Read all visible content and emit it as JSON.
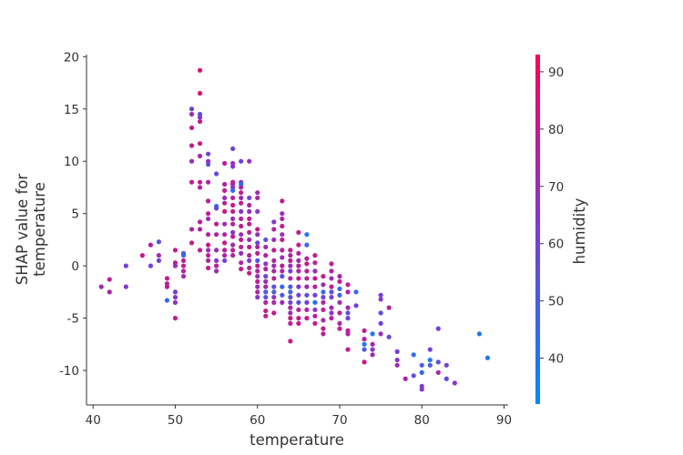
{
  "chart_data": {
    "type": "scatter",
    "title": "",
    "xlabel": "temperature",
    "ylabel": [
      "SHAP value for",
      "temperature"
    ],
    "xlim": [
      39.2,
      90.5
    ],
    "ylim": [
      -13.3,
      20.2
    ],
    "xticks": [
      40,
      50,
      60,
      70,
      80,
      90
    ],
    "yticks": [
      20,
      15,
      10,
      5,
      0,
      -5,
      -10
    ],
    "xtick_labels": [
      "40",
      "50",
      "60",
      "70",
      "80",
      "90"
    ],
    "ytick_labels": [
      "20",
      "15",
      "10",
      "5",
      "0",
      "-5",
      "-10"
    ],
    "grid": false,
    "colorbar": {
      "label": "humidity",
      "range": [
        32,
        93
      ],
      "ticks": [
        40,
        50,
        60,
        70,
        80,
        90
      ],
      "tick_labels": [
        "40",
        "50",
        "60",
        "70",
        "80",
        "90"
      ],
      "colors": [
        "#008afb",
        "#7a3cd7",
        "#ff0052"
      ]
    },
    "points": [
      [
        41,
        -2,
        70
      ],
      [
        42,
        -1.3,
        78
      ],
      [
        42,
        -2.5,
        75
      ],
      [
        44,
        0,
        60
      ],
      [
        44,
        -2,
        65
      ],
      [
        46,
        1,
        80
      ],
      [
        47,
        2,
        75
      ],
      [
        47,
        0,
        60
      ],
      [
        48,
        2.3,
        55
      ],
      [
        48,
        1,
        70
      ],
      [
        48,
        0.5,
        60
      ],
      [
        49,
        -1.2,
        80
      ],
      [
        49,
        -1.7,
        75
      ],
      [
        49,
        -2,
        78
      ],
      [
        49,
        -3.3,
        45
      ],
      [
        50,
        1.5,
        80
      ],
      [
        50,
        0.3,
        78
      ],
      [
        50,
        0,
        70
      ],
      [
        50,
        -2.5,
        60
      ],
      [
        50,
        -3,
        65
      ],
      [
        50,
        -3.5,
        70
      ],
      [
        50,
        -5,
        80
      ],
      [
        51,
        1.2,
        55
      ],
      [
        51,
        1,
        45
      ],
      [
        51,
        0.5,
        80
      ],
      [
        51,
        0,
        78
      ],
      [
        51,
        -0.5,
        75
      ],
      [
        51,
        -1,
        70
      ],
      [
        52,
        15,
        60
      ],
      [
        52,
        14.5,
        70
      ],
      [
        52,
        13.2,
        80
      ],
      [
        52,
        11.5,
        78
      ],
      [
        52,
        10,
        70
      ],
      [
        52,
        8,
        80
      ],
      [
        52,
        3.5,
        75
      ],
      [
        52,
        2.2,
        80
      ],
      [
        53,
        18.7,
        85
      ],
      [
        53,
        16.5,
        85
      ],
      [
        53,
        14.5,
        55
      ],
      [
        53,
        14.2,
        65
      ],
      [
        53,
        13.8,
        80
      ],
      [
        53,
        11.7,
        80
      ],
      [
        53,
        10.5,
        70
      ],
      [
        53,
        8,
        80
      ],
      [
        53,
        7.5,
        75
      ],
      [
        53,
        4.2,
        78
      ],
      [
        53,
        3.5,
        75
      ],
      [
        53,
        1.5,
        80
      ],
      [
        54,
        10.7,
        60
      ],
      [
        54,
        10,
        70
      ],
      [
        54,
        9.7,
        55
      ],
      [
        54,
        8,
        75
      ],
      [
        54,
        6.2,
        78
      ],
      [
        54,
        5,
        78
      ],
      [
        54,
        4.5,
        70
      ],
      [
        54,
        3,
        75
      ],
      [
        54,
        2,
        80
      ],
      [
        54,
        1.5,
        70
      ],
      [
        54,
        1,
        78
      ],
      [
        54,
        0.5,
        75
      ],
      [
        54,
        -0.2,
        80
      ],
      [
        55,
        8.8,
        55
      ],
      [
        55,
        5.7,
        45
      ],
      [
        55,
        5.5,
        60
      ],
      [
        55,
        4,
        80
      ],
      [
        55,
        3,
        75
      ],
      [
        55,
        1.5,
        70
      ],
      [
        55,
        0.5,
        65
      ],
      [
        55,
        0,
        78
      ],
      [
        55,
        -0.5,
        70
      ],
      [
        56,
        9.8,
        78
      ],
      [
        56,
        7.8,
        75
      ],
      [
        56,
        7.2,
        78
      ],
      [
        56,
        6.5,
        70
      ],
      [
        56,
        6,
        75
      ],
      [
        56,
        5.2,
        80
      ],
      [
        56,
        4,
        70
      ],
      [
        56,
        3,
        75
      ],
      [
        56,
        2.2,
        80
      ],
      [
        56,
        1.5,
        78
      ],
      [
        56,
        1,
        75
      ],
      [
        56,
        0.5,
        60
      ],
      [
        57,
        11.2,
        60
      ],
      [
        57,
        9.8,
        70
      ],
      [
        57,
        9.5,
        65
      ],
      [
        57,
        8,
        78
      ],
      [
        57,
        7.8,
        75
      ],
      [
        57,
        7.5,
        70
      ],
      [
        57,
        7.2,
        45
      ],
      [
        57,
        6.5,
        75
      ],
      [
        57,
        5.8,
        80
      ],
      [
        57,
        5.2,
        78
      ],
      [
        57,
        4.5,
        70
      ],
      [
        57,
        4,
        75
      ],
      [
        57,
        3.2,
        65
      ],
      [
        57,
        2.8,
        80
      ],
      [
        57,
        2,
        70
      ],
      [
        57,
        1.5,
        78
      ],
      [
        57,
        1,
        75
      ],
      [
        58,
        10,
        60
      ],
      [
        58,
        8,
        70
      ],
      [
        58,
        7.8,
        40
      ],
      [
        58,
        7.5,
        75
      ],
      [
        58,
        7,
        78
      ],
      [
        58,
        6.5,
        70
      ],
      [
        58,
        6,
        80
      ],
      [
        58,
        5.2,
        65
      ],
      [
        58,
        4.5,
        75
      ],
      [
        58,
        3.8,
        78
      ],
      [
        58,
        3,
        70
      ],
      [
        58,
        2.5,
        80
      ],
      [
        58,
        1.8,
        75
      ],
      [
        58,
        1.2,
        70
      ],
      [
        58,
        0.3,
        75
      ],
      [
        58,
        -0.3,
        78
      ],
      [
        59,
        10,
        70
      ],
      [
        59,
        6.5,
        60
      ],
      [
        59,
        5.8,
        75
      ],
      [
        59,
        5.2,
        70
      ],
      [
        59,
        4.5,
        80
      ],
      [
        59,
        4,
        78
      ],
      [
        59,
        3.2,
        75
      ],
      [
        59,
        2.5,
        70
      ],
      [
        59,
        1.8,
        80
      ],
      [
        59,
        1,
        75
      ],
      [
        59,
        0.5,
        65
      ],
      [
        59,
        -0.2,
        78
      ],
      [
        59,
        -0.7,
        80
      ],
      [
        60,
        7,
        70
      ],
      [
        60,
        6.5,
        75
      ],
      [
        60,
        5.2,
        65
      ],
      [
        60,
        3.5,
        80
      ],
      [
        60,
        3,
        70
      ],
      [
        60,
        2.2,
        60
      ],
      [
        60,
        1.8,
        75
      ],
      [
        60,
        1.2,
        78
      ],
      [
        60,
        0.5,
        50
      ],
      [
        60,
        0,
        80
      ],
      [
        60,
        -0.5,
        75
      ],
      [
        60,
        -1,
        70
      ],
      [
        60,
        -1.5,
        78
      ],
      [
        60,
        -2,
        70
      ],
      [
        60,
        -2.5,
        75
      ],
      [
        60,
        -3,
        65
      ],
      [
        61,
        2.5,
        55
      ],
      [
        61,
        1.8,
        70
      ],
      [
        61,
        1,
        75
      ],
      [
        61,
        0.2,
        65
      ],
      [
        61,
        -0.3,
        75
      ],
      [
        61,
        -1,
        60
      ],
      [
        61,
        -1.5,
        70
      ],
      [
        61,
        -2,
        75
      ],
      [
        61,
        -2.5,
        50
      ],
      [
        61,
        -3,
        55
      ],
      [
        61,
        -3.5,
        75
      ],
      [
        61,
        -4.3,
        80
      ],
      [
        61,
        -4.8,
        78
      ],
      [
        62,
        4.2,
        65
      ],
      [
        62,
        3.5,
        75
      ],
      [
        62,
        2.5,
        70
      ],
      [
        62,
        1.5,
        78
      ],
      [
        62,
        0.5,
        75
      ],
      [
        62,
        0,
        70
      ],
      [
        62,
        -0.5,
        75
      ],
      [
        62,
        -1.2,
        78
      ],
      [
        62,
        -2,
        55
      ],
      [
        62,
        -2.5,
        50
      ],
      [
        62,
        -3,
        65
      ],
      [
        62,
        -3.5,
        75
      ],
      [
        62,
        -4.5,
        80
      ],
      [
        63,
        6.2,
        78
      ],
      [
        63,
        5,
        70
      ],
      [
        63,
        4.5,
        75
      ],
      [
        63,
        3.8,
        78
      ],
      [
        63,
        3,
        70
      ],
      [
        63,
        2.5,
        80
      ],
      [
        63,
        1.5,
        75
      ],
      [
        63,
        0.8,
        70
      ],
      [
        63,
        0,
        78
      ],
      [
        63,
        -0.5,
        75
      ],
      [
        63,
        -1,
        55
      ],
      [
        63,
        -2,
        45
      ],
      [
        63,
        -2.8,
        50
      ],
      [
        63,
        -3.5,
        70
      ],
      [
        64,
        1.5,
        78
      ],
      [
        64,
        1,
        75
      ],
      [
        64,
        0.5,
        78
      ],
      [
        64,
        0,
        70
      ],
      [
        64,
        -0.5,
        60
      ],
      [
        64,
        -1.2,
        75
      ],
      [
        64,
        -2,
        50
      ],
      [
        64,
        -2.5,
        45
      ],
      [
        64,
        -3,
        55
      ],
      [
        64,
        -3.5,
        60
      ],
      [
        64,
        -4,
        75
      ],
      [
        64,
        -4.5,
        70
      ],
      [
        64,
        -5,
        80
      ],
      [
        64,
        -5.5,
        78
      ],
      [
        64,
        -7.2,
        80
      ],
      [
        65,
        3.2,
        80
      ],
      [
        65,
        2,
        78
      ],
      [
        65,
        1.2,
        75
      ],
      [
        65,
        0.5,
        70
      ],
      [
        65,
        0,
        78
      ],
      [
        65,
        -0.5,
        75
      ],
      [
        65,
        -1.2,
        80
      ],
      [
        65,
        -2,
        65
      ],
      [
        65,
        -2.8,
        60
      ],
      [
        65,
        -3.5,
        55
      ],
      [
        65,
        -4.2,
        75
      ],
      [
        65,
        -5,
        80
      ],
      [
        65,
        -5.5,
        78
      ],
      [
        66,
        3,
        40
      ],
      [
        66,
        2,
        45
      ],
      [
        66,
        0.7,
        75
      ],
      [
        66,
        0.2,
        80
      ],
      [
        66,
        -0.5,
        78
      ],
      [
        66,
        -1.2,
        75
      ],
      [
        66,
        -2,
        70
      ],
      [
        66,
        -2.8,
        55
      ],
      [
        66,
        -3.5,
        60
      ],
      [
        66,
        -4.2,
        75
      ],
      [
        66,
        -5,
        80
      ],
      [
        67,
        1,
        78
      ],
      [
        67,
        0.3,
        75
      ],
      [
        67,
        -0.5,
        70
      ],
      [
        67,
        -1.2,
        80
      ],
      [
        67,
        -2,
        75
      ],
      [
        67,
        -2.8,
        60
      ],
      [
        67,
        -3.5,
        40
      ],
      [
        67,
        -4.2,
        65
      ],
      [
        67,
        -4.8,
        75
      ],
      [
        67,
        -5.5,
        80
      ],
      [
        68,
        -1,
        78
      ],
      [
        68,
        -1.8,
        70
      ],
      [
        68,
        -2.5,
        45
      ],
      [
        68,
        -3,
        60
      ],
      [
        68,
        -3.5,
        75
      ],
      [
        68,
        -4.2,
        78
      ],
      [
        68,
        -5.2,
        70
      ],
      [
        68,
        -6,
        80
      ],
      [
        68,
        -6.5,
        75
      ],
      [
        69,
        0.2,
        78
      ],
      [
        69,
        -0.5,
        75
      ],
      [
        69,
        -1.2,
        70
      ],
      [
        69,
        -2,
        80
      ],
      [
        69,
        -2.5,
        55
      ],
      [
        69,
        -3,
        60
      ],
      [
        69,
        -4,
        70
      ],
      [
        69,
        -4.5,
        65
      ],
      [
        69,
        -5,
        75
      ],
      [
        70,
        -1,
        75
      ],
      [
        70,
        -1.5,
        78
      ],
      [
        70,
        -2.2,
        45
      ],
      [
        70,
        -2.8,
        50
      ],
      [
        70,
        -3.5,
        70
      ],
      [
        70,
        -4.5,
        78
      ],
      [
        70,
        -5.5,
        75
      ],
      [
        70,
        -6,
        80
      ],
      [
        71,
        -1.8,
        78
      ],
      [
        71,
        -2.5,
        75
      ],
      [
        71,
        -4,
        70
      ],
      [
        71,
        -4.5,
        55
      ],
      [
        71,
        -5,
        60
      ],
      [
        71,
        -6.2,
        80
      ],
      [
        71,
        -6.5,
        75
      ],
      [
        71,
        -8,
        78
      ],
      [
        72,
        -2.5,
        45
      ],
      [
        72,
        -3.8,
        60
      ],
      [
        73,
        -6.2,
        75
      ],
      [
        73,
        -7,
        78
      ],
      [
        73,
        -7.5,
        40
      ],
      [
        73,
        -8,
        50
      ],
      [
        73,
        -9.2,
        80
      ],
      [
        74,
        -6.5,
        40
      ],
      [
        74,
        -7.5,
        75
      ],
      [
        74,
        -8,
        65
      ],
      [
        74,
        -8.5,
        70
      ],
      [
        75,
        -2.8,
        60
      ],
      [
        75,
        -3.2,
        65
      ],
      [
        75,
        -4.5,
        55
      ],
      [
        75,
        -5.5,
        60
      ],
      [
        75,
        -6.5,
        70
      ],
      [
        76,
        -4,
        75
      ],
      [
        76,
        -6.8,
        60
      ],
      [
        77,
        -8.2,
        60
      ],
      [
        77,
        -9,
        65
      ],
      [
        77,
        -9.5,
        70
      ],
      [
        78,
        -10.8,
        75
      ],
      [
        79,
        -8.5,
        45
      ],
      [
        79,
        -10.5,
        55
      ],
      [
        80,
        -9.5,
        50
      ],
      [
        80,
        -10.2,
        45
      ],
      [
        80,
        -11.5,
        60
      ],
      [
        80,
        -11.8,
        65
      ],
      [
        81,
        -8,
        60
      ],
      [
        81,
        -9,
        40
      ],
      [
        81,
        -9.5,
        50
      ],
      [
        82,
        -6,
        60
      ],
      [
        82,
        -9.2,
        55
      ],
      [
        82,
        -10.2,
        75
      ],
      [
        83,
        -9.5,
        60
      ],
      [
        83,
        -10.8,
        55
      ],
      [
        84,
        -11.2,
        65
      ],
      [
        87,
        -6.5,
        40
      ],
      [
        88,
        -8.8,
        40
      ]
    ]
  }
}
